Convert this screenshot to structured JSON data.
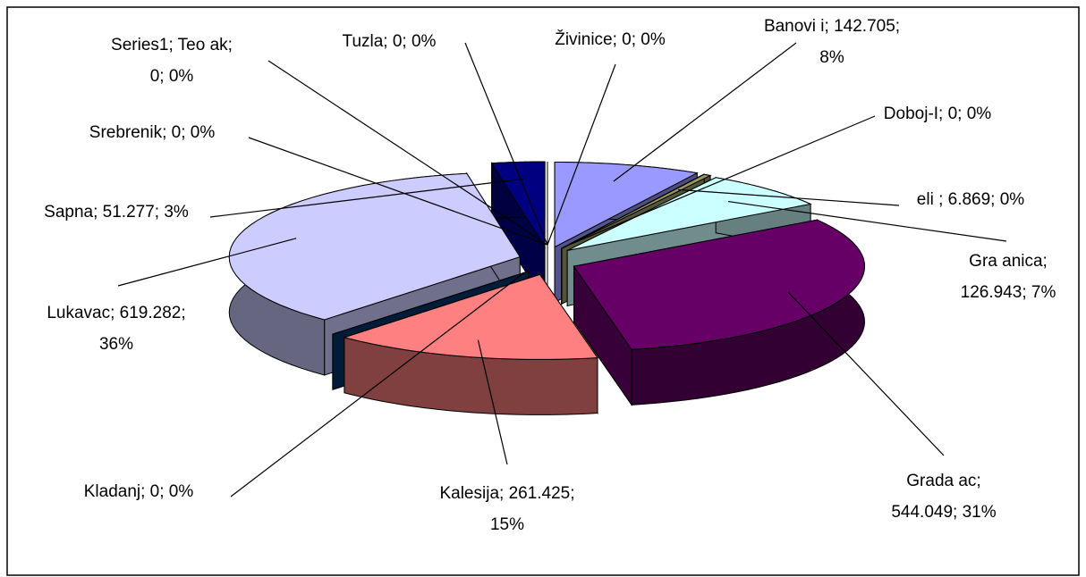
{
  "chart_data": {
    "type": "pie3d",
    "labels": [
      [
        "Banovi i; 142.705;",
        "8%"
      ],
      [
        "Doboj-I; 0; 0%"
      ],
      [
        " eli ; 6.869; 0%"
      ],
      [
        "Gra anica;",
        "126.943; 7%"
      ],
      [
        "Grada ac;",
        "544.049; 31%"
      ],
      [
        "Kalesija; 261.425;",
        "15%"
      ],
      [
        "Kladanj; 0; 0%"
      ],
      [
        "Lukavac; 619.282;",
        "36%"
      ],
      [
        "Sapna; 51.277; 3%"
      ],
      [
        "Srebrenik; 0; 0%"
      ],
      [
        "Series1; Teo ak;",
        "0; 0%"
      ],
      [
        "Tuzla; 0; 0%"
      ],
      [
        "Živinice; 0; 0%"
      ]
    ],
    "values": [
      142.705,
      0,
      6.869,
      126.943,
      544.049,
      261.425,
      0,
      619.282,
      51.277,
      0,
      0,
      0,
      0
    ],
    "colors": [
      "#9999ff",
      "#993366",
      "#999966",
      "#ccffff",
      "#660066",
      "#ff8080",
      "#003366",
      "#ccccff",
      "#000080",
      "#ff00ff",
      "#ffff00",
      "#00ffff",
      "#800080"
    ]
  }
}
